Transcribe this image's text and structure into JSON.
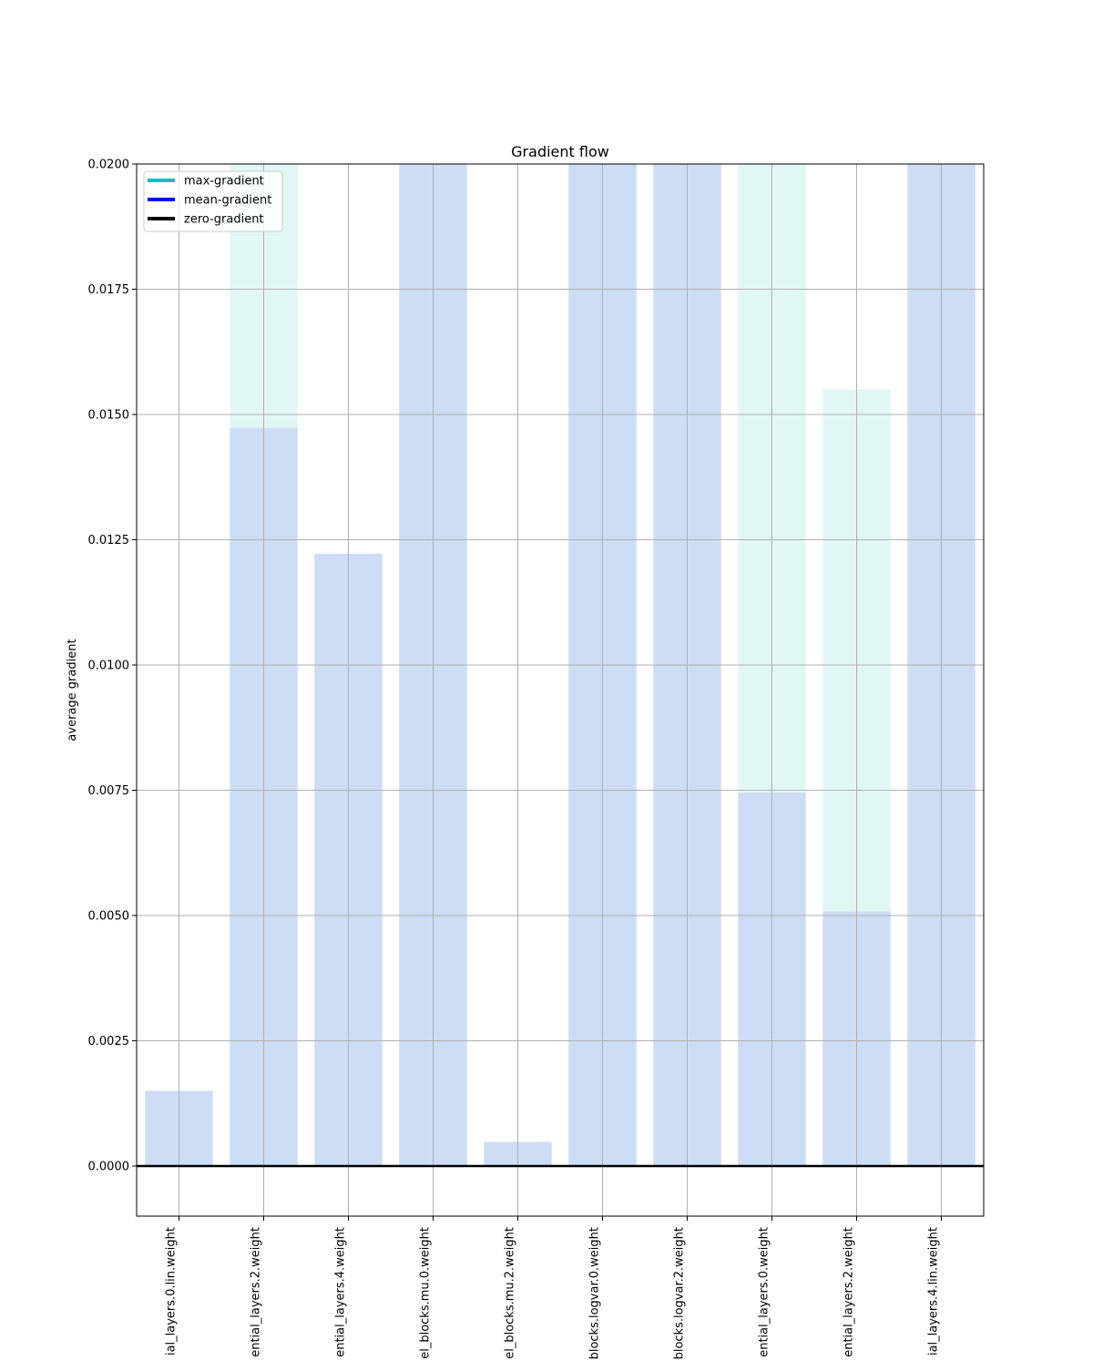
{
  "chart_data": {
    "type": "bar",
    "title": "Gradient flow",
    "xlabel": "",
    "ylabel": "average gradient",
    "ylim": [
      -0.001,
      0.02
    ],
    "yticks": [
      "0.0000",
      "0.0025",
      "0.0050",
      "0.0075",
      "0.0100",
      "0.0125",
      "0.0150",
      "0.0175",
      "0.0200"
    ],
    "ytick_values": [
      0.0,
      0.0025,
      0.005,
      0.0075,
      0.01,
      0.0125,
      0.015,
      0.0175,
      0.02
    ],
    "categories": [
      "ial_layers.0.lin.weight",
      "ential_layers.2.weight",
      "ential_layers.4.weight",
      "el_blocks.mu.0.weight",
      "el_blocks.mu.2.weight",
      "blocks.logvar.0.weight",
      "blocks.logvar.2.weight",
      "ential_layers.0.weight",
      "ential_layers.2.weight",
      "ial_layers.4.lin.weight"
    ],
    "series": [
      {
        "name": "max-gradient",
        "color": "#00bfbf",
        "values": [
          0.0015,
          0.0205,
          0.0122,
          0.0205,
          0.00048,
          0.0205,
          0.0205,
          0.0205,
          0.0155,
          0.0205
        ]
      },
      {
        "name": "mean-gradient",
        "color": "#0000ff",
        "values": [
          0.0015,
          0.01473,
          0.01222,
          0.0205,
          0.00048,
          0.0205,
          0.0205,
          0.00745,
          0.00508,
          0.0205
        ]
      }
    ],
    "zero_line": {
      "name": "zero-gradient",
      "color": "#000000",
      "value": 0
    },
    "grid": true,
    "legend_position": "top-left"
  }
}
